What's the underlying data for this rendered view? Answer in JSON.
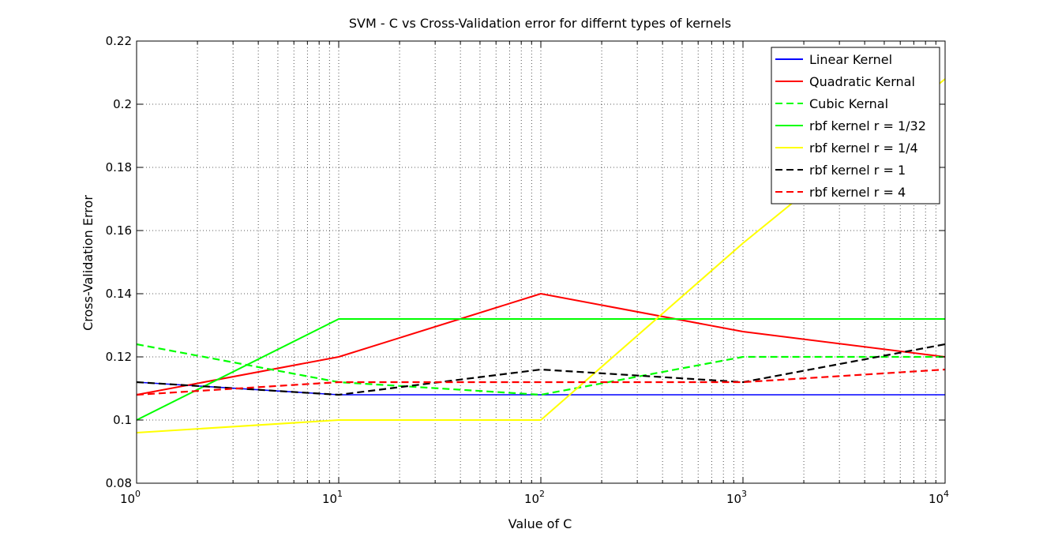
{
  "chart_data": {
    "type": "line",
    "title": "SVM - C vs Cross-Validation error for differnt types of kernels",
    "xlabel": "Value of C",
    "ylabel": "Cross-Validation Error",
    "xscale": "log",
    "xlim": [
      1,
      10000
    ],
    "ylim": [
      0.08,
      0.22
    ],
    "grid": true,
    "legend_position": "top-right",
    "x": [
      1,
      10,
      100,
      1000,
      10000
    ],
    "x_tick_labels": [
      {
        "base": "10",
        "exp": "0"
      },
      {
        "base": "10",
        "exp": "1"
      },
      {
        "base": "10",
        "exp": "2"
      },
      {
        "base": "10",
        "exp": "3"
      },
      {
        "base": "10",
        "exp": "4"
      }
    ],
    "y_ticks": [
      0.08,
      0.1,
      0.12,
      0.14,
      0.16,
      0.18,
      0.2,
      0.22
    ],
    "y_tick_labels": [
      "0.08",
      "0.1",
      "0.12",
      "0.14",
      "0.16",
      "0.18",
      "0.2",
      "0.22"
    ],
    "series": [
      {
        "name": "Linear Kernel",
        "color": "#0000ff",
        "dash": "solid",
        "values": [
          0.112,
          0.108,
          0.108,
          0.108,
          0.108
        ]
      },
      {
        "name": "Quadratic Kernal",
        "color": "#ff0000",
        "dash": "solid",
        "values": [
          0.108,
          0.12,
          0.14,
          0.128,
          0.12
        ]
      },
      {
        "name": "Cubic Kernal",
        "color": "#00ff00",
        "dash": "dashed",
        "values": [
          0.124,
          0.112,
          0.108,
          0.12,
          0.12
        ]
      },
      {
        "name": "rbf kernel r = 1/32",
        "color": "#00ff00",
        "dash": "solid",
        "values": [
          0.1,
          0.132,
          0.132,
          0.132,
          0.132
        ]
      },
      {
        "name": "rbf kernel r = 1/4",
        "color": "#ffff00",
        "dash": "solid",
        "values": [
          0.096,
          0.1,
          0.1,
          0.156,
          0.208
        ]
      },
      {
        "name": "rbf kernel r = 1",
        "color": "#000000",
        "dash": "dashed",
        "values": [
          0.112,
          0.108,
          0.116,
          0.112,
          0.124
        ]
      },
      {
        "name": "rbf kernel r = 4",
        "color": "#ff0000",
        "dash": "dashed",
        "values": [
          0.108,
          0.112,
          0.112,
          0.112,
          0.116
        ]
      }
    ]
  }
}
